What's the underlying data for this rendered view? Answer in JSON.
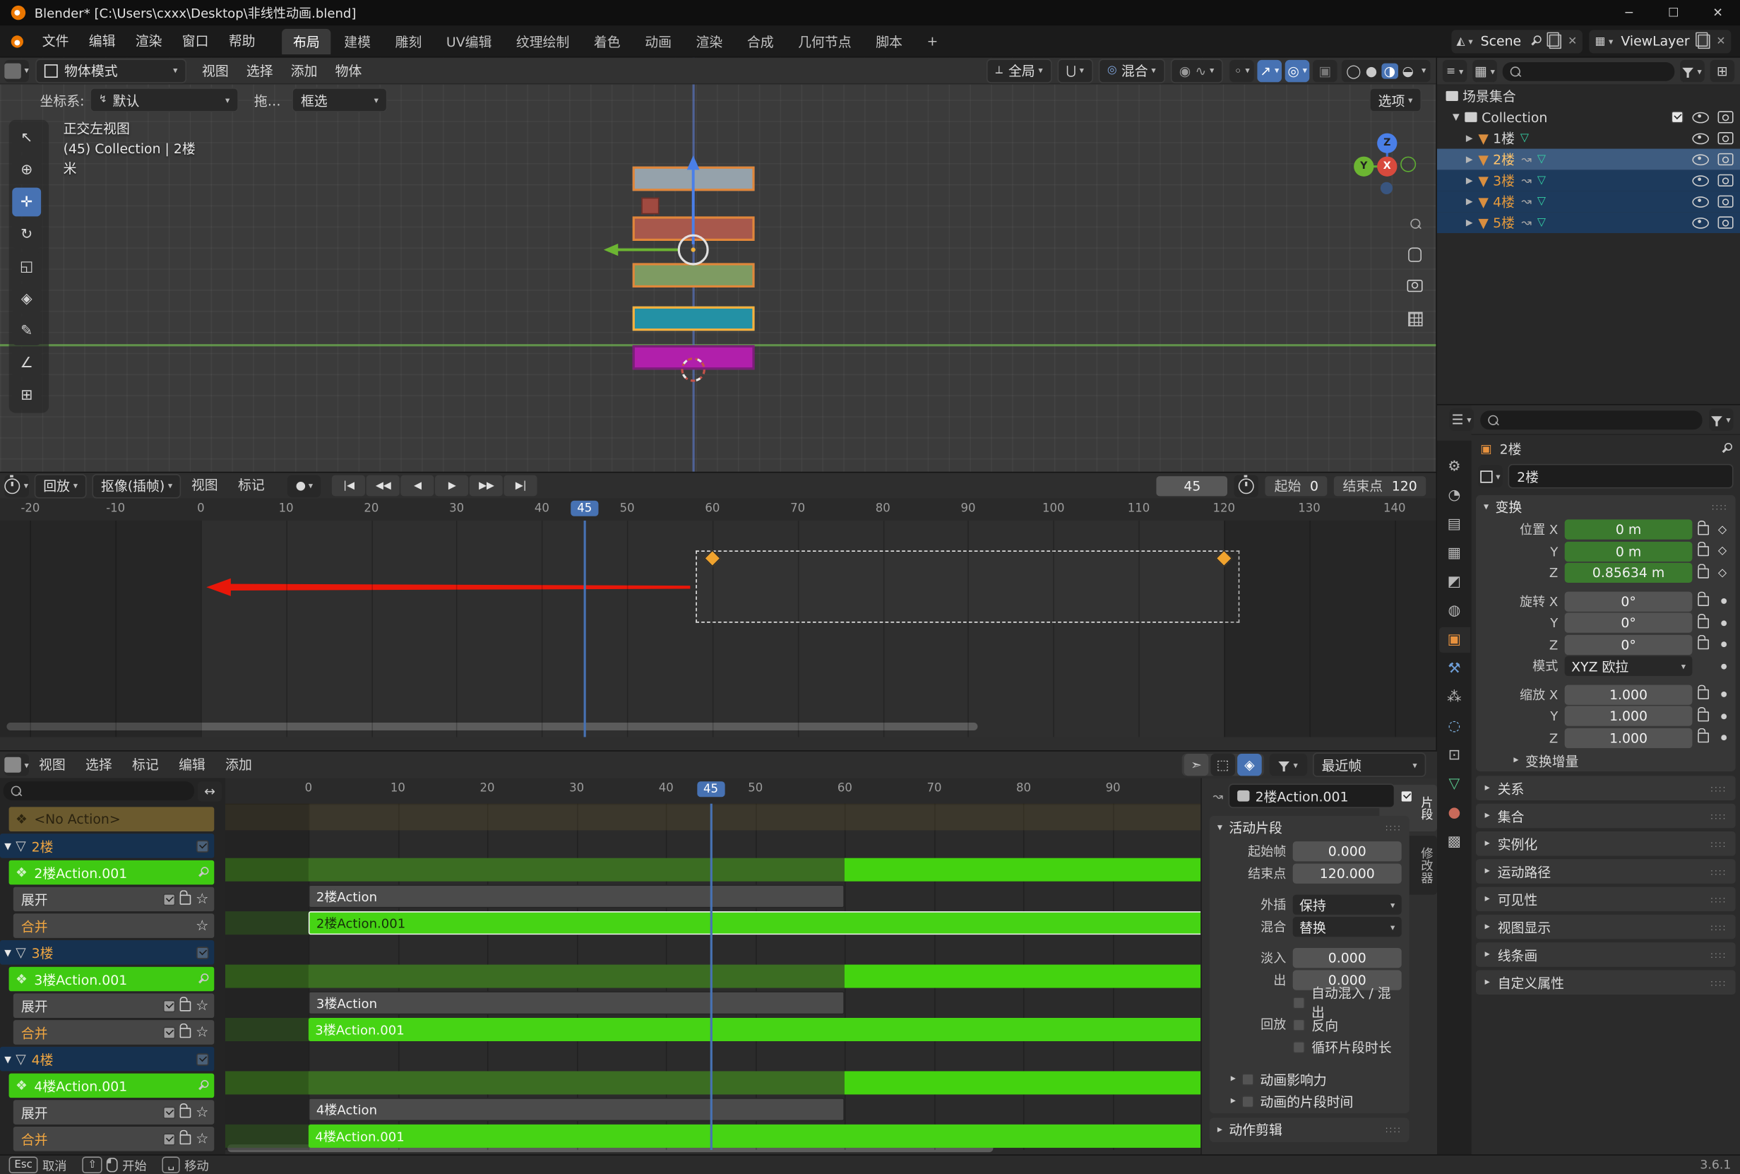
{
  "titlebar": {
    "title": "Blender* [C:\\Users\\cxxx\\Desktop\\非线性动画.blend]"
  },
  "topbar": {
    "menus": [
      "文件",
      "编辑",
      "渲染",
      "窗口",
      "帮助"
    ],
    "tabs": [
      {
        "label": "布局",
        "active": true
      },
      {
        "label": "建模"
      },
      {
        "label": "雕刻"
      },
      {
        "label": "UV编辑"
      },
      {
        "label": "纹理绘制"
      },
      {
        "label": "着色"
      },
      {
        "label": "动画"
      },
      {
        "label": "渲染"
      },
      {
        "label": "合成"
      },
      {
        "label": "几何节点"
      },
      {
        "label": "脚本"
      },
      {
        "label": "+"
      }
    ],
    "scene_label": "Scene",
    "viewlayer_label": "ViewLayer"
  },
  "viewport": {
    "mode": "物体模式",
    "menus": [
      "视图",
      "选择",
      "添加",
      "物体"
    ],
    "orientation": "全局",
    "proportional_label": "混合",
    "options_label": "选项",
    "coord_label": "坐标系:",
    "coord_value": "默认",
    "drag_label": "拖…",
    "select_label": "框选",
    "overlay_lines": [
      "正交左视图",
      "(45) Collection | 2楼",
      "米"
    ],
    "gizmo_axes": {
      "x": "X",
      "y": "Y",
      "z": "Z"
    },
    "tools": [
      {
        "name": "select-box",
        "glyph": "↖"
      },
      {
        "name": "cursor",
        "glyph": "⊕"
      },
      {
        "name": "move",
        "glyph": "✛",
        "active": true
      },
      {
        "name": "rotate",
        "glyph": "↻"
      },
      {
        "name": "scale",
        "glyph": "◱"
      },
      {
        "name": "transform",
        "glyph": "◈"
      },
      {
        "name": "annotate",
        "glyph": "✎"
      },
      {
        "name": "measure",
        "glyph": "∠"
      },
      {
        "name": "add-cube",
        "glyph": "⊞"
      }
    ],
    "floors": [
      {
        "name": "floor-bar-top",
        "color": "#95a2ab",
        "outline": "#e0863a"
      },
      {
        "name": "floor-bar-2",
        "color": "#a8584c",
        "outline": "#e0863a"
      },
      {
        "name": "floor-bar-3",
        "color": "#7e9b62",
        "outline": "#e0863a"
      },
      {
        "name": "floor-bar-4",
        "color": "#2391a5",
        "outline": "#ffb13c"
      },
      {
        "name": "floor-bar-5",
        "color": "#b11fab",
        "outline": "#7a1f78"
      }
    ]
  },
  "timeline": {
    "dropdown_menus": [
      "回放",
      "抠像(插帧)"
    ],
    "menus": [
      "视图",
      "标记"
    ],
    "transport": [
      {
        "name": "jump-start",
        "glyph": "|◀"
      },
      {
        "name": "prev-keyframe",
        "glyph": "◀◀"
      },
      {
        "name": "play-reverse",
        "glyph": "◀"
      },
      {
        "name": "play",
        "glyph": "▶"
      },
      {
        "name": "next-keyframe",
        "glyph": "▶▶"
      },
      {
        "name": "jump-end",
        "glyph": "▶|"
      }
    ],
    "current_frame": "45",
    "start_label": "起始",
    "start_value": "0",
    "end_label": "结束点",
    "end_value": "120",
    "ruler_ticks": [
      -20,
      -10,
      0,
      10,
      20,
      30,
      40,
      50,
      60,
      70,
      80,
      90,
      100,
      110,
      120,
      130,
      140
    ],
    "playhead_frame": 45,
    "keyframes": [
      60,
      120
    ],
    "selection_box": {
      "start": 58,
      "end": 121.5
    }
  },
  "nla": {
    "menus": [
      "视图",
      "选择",
      "标记",
      "编辑",
      "添加"
    ],
    "snap_value": "最近帧",
    "ruler_ticks": [
      0,
      10,
      20,
      30,
      40,
      50,
      60,
      70,
      80,
      90
    ],
    "playhead_frame": 45,
    "tweak_segments": [
      {
        "start": -9.3,
        "end": 60,
        "kind": "dark"
      },
      {
        "start": 60,
        "end": 100.5,
        "kind": "bright"
      }
    ],
    "rows": [
      {
        "kind": "noaction",
        "label": "<No Action>"
      },
      {
        "kind": "object",
        "label": "2楼"
      },
      {
        "kind": "tweak",
        "label": "2楼Action.001"
      },
      {
        "kind": "track",
        "label": "展开",
        "strip": {
          "label": "2楼Action",
          "start": 0,
          "end": 60
        }
      },
      {
        "kind": "merge",
        "label": "合并",
        "staronly": true,
        "strip": {
          "label": "2楼Action.001",
          "start": 0,
          "end": 100.5,
          "selected": true,
          "darktext": true
        }
      },
      {
        "kind": "object",
        "label": "3楼"
      },
      {
        "kind": "tweak",
        "label": "3楼Action.001"
      },
      {
        "kind": "track",
        "label": "展开",
        "strip": {
          "label": "3楼Action",
          "start": 0,
          "end": 60
        }
      },
      {
        "kind": "merge",
        "label": "合并",
        "strip": {
          "label": "3楼Action.001",
          "start": 0,
          "end": 100.5
        }
      },
      {
        "kind": "object",
        "label": "4楼"
      },
      {
        "kind": "tweak",
        "label": "4楼Action.001"
      },
      {
        "kind": "track",
        "label": "展开",
        "strip": {
          "label": "4楼Action",
          "start": 0,
          "end": 60
        }
      },
      {
        "kind": "merge",
        "label": "合并",
        "strip": {
          "label": "4楼Action.001",
          "start": 0,
          "end": 100.5
        }
      }
    ],
    "sidebar": {
      "tabs": [
        {
          "label": "片段",
          "active": true
        },
        {
          "label": "修改器"
        }
      ],
      "name_value": "2楼Action.001",
      "panel_title": "活动片段",
      "fields": [
        {
          "label": "起始帧",
          "value": "0.000"
        },
        {
          "label": "结束点",
          "value": "120.000"
        }
      ],
      "dropdowns": [
        {
          "label": "外插",
          "value": "保持"
        },
        {
          "label": "混合",
          "value": "替换"
        }
      ],
      "fades": [
        {
          "label": "淡入",
          "value": "0.000"
        },
        {
          "label": "出",
          "value": "0.000"
        }
      ],
      "auto_blend_label": "自动混入 / 混出",
      "playback_label": "回放",
      "reverse_label": "反向",
      "cyclic_label": "循环片段时长",
      "sub_panels": [
        "动画影响力",
        "动画的片段时间"
      ],
      "bottom_panel": "动作剪辑"
    }
  },
  "outliner": {
    "scene_collection_label": "场景集合",
    "collection_label": "Collection",
    "objects": [
      {
        "label": "1楼",
        "selected": false,
        "active": false,
        "animated": false
      },
      {
        "label": "2楼",
        "selected": true,
        "active": true,
        "animated": true
      },
      {
        "label": "3楼",
        "selected": true,
        "active": false,
        "animated": true
      },
      {
        "label": "4楼",
        "selected": true,
        "active": false,
        "animated": true
      },
      {
        "label": "5楼",
        "selected": true,
        "active": false,
        "animated": true
      }
    ]
  },
  "properties": {
    "tabs": [
      {
        "name": "tool",
        "glyph": "⚙",
        "color": "#b8b8b8"
      },
      {
        "name": "render",
        "glyph": "◔",
        "color": "#b8b8b8"
      },
      {
        "name": "output",
        "glyph": "▤",
        "color": "#b8b8b8"
      },
      {
        "name": "view-layer",
        "glyph": "▦",
        "color": "#b8b8b8"
      },
      {
        "name": "scene",
        "glyph": "◩",
        "color": "#b8b8b8"
      },
      {
        "name": "world",
        "glyph": "◍",
        "color": "#b8b8b8"
      },
      {
        "name": "object",
        "glyph": "▣",
        "color": "#e8923e",
        "active": true
      },
      {
        "name": "modifiers",
        "glyph": "⚒",
        "color": "#6f9fd8"
      },
      {
        "name": "particles",
        "glyph": "⁂",
        "color": "#b8b8b8"
      },
      {
        "name": "physics",
        "glyph": "◌",
        "color": "#7fb2e0"
      },
      {
        "name": "constraints",
        "glyph": "⊡",
        "color": "#b8b8b8"
      },
      {
        "name": "data",
        "glyph": "▽",
        "color": "#58c48a"
      },
      {
        "name": "material",
        "glyph": "●",
        "color": "#c96a5a"
      },
      {
        "name": "texture",
        "glyph": "▩",
        "color": "#b8b8b8"
      }
    ],
    "breadcrumb": "2楼",
    "name_value": "2楼",
    "transform_title": "变换",
    "location_label": "位置",
    "location_rows": [
      {
        "axis": "X",
        "value": "0 m"
      },
      {
        "axis": "Y",
        "value": "0 m"
      },
      {
        "axis": "Z",
        "value": "0.85634 m"
      }
    ],
    "rotation_label": "旋转",
    "rotation_rows": [
      {
        "axis": "X",
        "value": "0°"
      },
      {
        "axis": "Y",
        "value": "0°"
      },
      {
        "axis": "Z",
        "value": "0°"
      }
    ],
    "mode_label": "模式",
    "mode_value": "XYZ 欧拉",
    "scale_label": "缩放",
    "scale_rows": [
      {
        "axis": "X",
        "value": "1.000"
      },
      {
        "axis": "Y",
        "value": "1.000"
      },
      {
        "axis": "Z",
        "value": "1.000"
      }
    ],
    "delta_label": "变换增量",
    "panels": [
      "关系",
      "集合",
      "实例化",
      "运动路径",
      "可见性",
      "视图显示",
      "线条画",
      "自定义属性"
    ]
  },
  "statusbar": {
    "hints": [
      {
        "keys": [
          "Esc"
        ],
        "label": "取消"
      },
      {
        "keys": [
          "⇧",
          "LMB"
        ],
        "label": "开始"
      },
      {
        "keys": [
          "␣"
        ],
        "label": "移动"
      }
    ],
    "version": "3.6.1"
  }
}
